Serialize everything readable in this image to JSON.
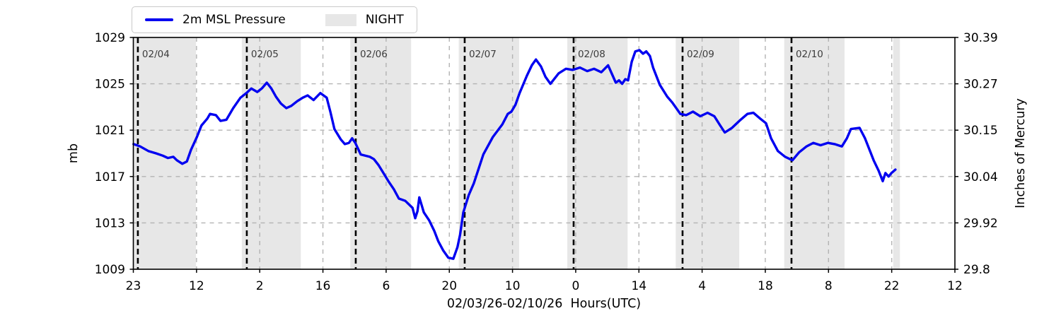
{
  "figure": {
    "background": "#ffffff"
  },
  "colors": {
    "line": "#0000f0",
    "night": "#e7e7e7",
    "grid": "#b3b3b3",
    "day_line": "#000000",
    "day_label": "#3c3c3c",
    "axis": "#000000"
  },
  "legend": {
    "items": [
      {
        "label": "2m MSL Pressure",
        "type": "line",
        "color": "#0000f0"
      },
      {
        "label": "NIGHT",
        "type": "patch",
        "color": "#e7e7e7"
      }
    ]
  },
  "chart_data": {
    "type": "line",
    "title": "",
    "xlabel": "02/03/26-02/10/26  Hours(UTC)",
    "ylabel_left": "mb",
    "ylabel_right": "Inches of Mercury",
    "grid": true,
    "legend_position": "top-left, horizontal",
    "xlim_hours": [
      0,
      181
    ],
    "ylim_mb": [
      1009,
      1029
    ],
    "x_tick_labels": [
      "23",
      "12",
      "2",
      "16",
      "6",
      "20",
      "10",
      "0",
      "14",
      "4",
      "18",
      "8",
      "22",
      "12"
    ],
    "y_ticks_left_mb": [
      1009,
      1013,
      1017,
      1021,
      1025,
      1029
    ],
    "y_tick_labels_right_inhg": [
      "29.8",
      "29.92",
      "30.04",
      "30.15",
      "30.27",
      "30.39"
    ],
    "day_markers": [
      {
        "label": "02/04",
        "hour": 1
      },
      {
        "label": "02/05",
        "hour": 25
      },
      {
        "label": "02/06",
        "hour": 49
      },
      {
        "label": "02/07",
        "hour": 73
      },
      {
        "label": "02/08",
        "hour": 97
      },
      {
        "label": "02/09",
        "hour": 121
      },
      {
        "label": "02/10",
        "hour": 145
      }
    ],
    "night_bands_hours": [
      [
        0,
        13.8
      ],
      [
        23.9,
        36.9
      ],
      [
        47.8,
        61.2
      ],
      [
        71.7,
        85.0
      ],
      [
        95.6,
        108.9
      ],
      [
        119.5,
        133.5
      ],
      [
        143.4,
        156.7
      ],
      [
        167.4,
        168.9
      ]
    ],
    "series": [
      {
        "name": "2m MSL Pressure",
        "color": "#0000f0",
        "units": "mb",
        "points_hour_mb": [
          [
            0.05,
            1019.8
          ],
          [
            1.5,
            1019.6
          ],
          [
            3.3,
            1019.2
          ],
          [
            5.0,
            1019.0
          ],
          [
            6.5,
            1018.8
          ],
          [
            7.6,
            1018.6
          ],
          [
            8.8,
            1018.7
          ],
          [
            9.6,
            1018.4
          ],
          [
            10.8,
            1018.1
          ],
          [
            11.8,
            1018.3
          ],
          [
            12.7,
            1019.3
          ],
          [
            14.0,
            1020.4
          ],
          [
            15.0,
            1021.4
          ],
          [
            16.3,
            1022.0
          ],
          [
            16.9,
            1022.4
          ],
          [
            18.2,
            1022.3
          ],
          [
            19.2,
            1021.8
          ],
          [
            20.5,
            1021.9
          ],
          [
            22.0,
            1022.9
          ],
          [
            23.6,
            1023.8
          ],
          [
            24.9,
            1024.2
          ],
          [
            26.0,
            1024.6
          ],
          [
            27.3,
            1024.3
          ],
          [
            28.3,
            1024.6
          ],
          [
            29.4,
            1025.1
          ],
          [
            30.4,
            1024.6
          ],
          [
            31.4,
            1023.9
          ],
          [
            32.5,
            1023.3
          ],
          [
            33.7,
            1022.9
          ],
          [
            34.8,
            1023.1
          ],
          [
            36.1,
            1023.5
          ],
          [
            37.3,
            1023.8
          ],
          [
            38.4,
            1024.0
          ],
          [
            39.7,
            1023.6
          ],
          [
            41.2,
            1024.2
          ],
          [
            42.6,
            1023.8
          ],
          [
            43.4,
            1022.6
          ],
          [
            44.3,
            1021.1
          ],
          [
            45.7,
            1020.2
          ],
          [
            46.6,
            1019.8
          ],
          [
            47.5,
            1019.9
          ],
          [
            48.2,
            1020.3
          ],
          [
            48.9,
            1019.9
          ],
          [
            50.1,
            1018.9
          ],
          [
            52.1,
            1018.7
          ],
          [
            53.0,
            1018.5
          ],
          [
            54.0,
            1018.0
          ],
          [
            55.1,
            1017.3
          ],
          [
            56.2,
            1016.6
          ],
          [
            57.4,
            1015.9
          ],
          [
            58.5,
            1015.1
          ],
          [
            59.9,
            1014.9
          ],
          [
            61.5,
            1014.3
          ],
          [
            62.1,
            1013.4
          ],
          [
            62.6,
            1014.0
          ],
          [
            63.0,
            1015.2
          ],
          [
            64.0,
            1013.9
          ],
          [
            65.2,
            1013.2
          ],
          [
            66.3,
            1012.3
          ],
          [
            67.2,
            1011.4
          ],
          [
            68.3,
            1010.6
          ],
          [
            69.4,
            1010.0
          ],
          [
            70.5,
            1009.9
          ],
          [
            71.4,
            1010.9
          ],
          [
            72.0,
            1012.0
          ],
          [
            72.7,
            1013.9
          ],
          [
            73.9,
            1015.4
          ],
          [
            75.0,
            1016.4
          ],
          [
            77.1,
            1018.9
          ],
          [
            79.2,
            1020.4
          ],
          [
            81.3,
            1021.5
          ],
          [
            82.5,
            1022.4
          ],
          [
            83.3,
            1022.6
          ],
          [
            84.2,
            1023.2
          ],
          [
            85.1,
            1024.2
          ],
          [
            86.7,
            1025.7
          ],
          [
            87.8,
            1026.6
          ],
          [
            88.7,
            1027.1
          ],
          [
            89.8,
            1026.5
          ],
          [
            90.8,
            1025.6
          ],
          [
            91.9,
            1025.0
          ],
          [
            93.7,
            1025.9
          ],
          [
            95.3,
            1026.3
          ],
          [
            96.8,
            1026.2
          ],
          [
            98.4,
            1026.4
          ],
          [
            100.0,
            1026.1
          ],
          [
            101.5,
            1026.3
          ],
          [
            103.1,
            1026.0
          ],
          [
            104.6,
            1026.6
          ],
          [
            105.5,
            1025.8
          ],
          [
            106.3,
            1025.1
          ],
          [
            107.0,
            1025.3
          ],
          [
            107.7,
            1025.0
          ],
          [
            108.4,
            1025.4
          ],
          [
            109.0,
            1025.3
          ],
          [
            109.8,
            1026.9
          ],
          [
            110.6,
            1027.8
          ],
          [
            111.5,
            1027.9
          ],
          [
            112.3,
            1027.6
          ],
          [
            113.0,
            1027.8
          ],
          [
            113.8,
            1027.4
          ],
          [
            114.5,
            1026.4
          ],
          [
            116.0,
            1024.9
          ],
          [
            117.6,
            1023.9
          ],
          [
            118.7,
            1023.4
          ],
          [
            119.8,
            1022.8
          ],
          [
            120.5,
            1022.4
          ],
          [
            121.8,
            1022.3
          ],
          [
            123.3,
            1022.6
          ],
          [
            124.9,
            1022.2
          ],
          [
            126.5,
            1022.5
          ],
          [
            128.0,
            1022.2
          ],
          [
            129.3,
            1021.4
          ],
          [
            130.3,
            1020.8
          ],
          [
            131.9,
            1021.2
          ],
          [
            133.8,
            1021.9
          ],
          [
            135.3,
            1022.4
          ],
          [
            136.6,
            1022.5
          ],
          [
            138.1,
            1022.0
          ],
          [
            139.4,
            1021.6
          ],
          [
            140.5,
            1020.3
          ],
          [
            142.0,
            1019.2
          ],
          [
            143.6,
            1018.7
          ],
          [
            145.2,
            1018.4
          ],
          [
            146.7,
            1019.1
          ],
          [
            148.3,
            1019.6
          ],
          [
            149.8,
            1019.9
          ],
          [
            151.4,
            1019.7
          ],
          [
            153.0,
            1019.9
          ],
          [
            154.5,
            1019.8
          ],
          [
            156.1,
            1019.6
          ],
          [
            157.2,
            1020.3
          ],
          [
            158.1,
            1021.1
          ],
          [
            160.0,
            1021.2
          ],
          [
            161.2,
            1020.3
          ],
          [
            162.3,
            1019.2
          ],
          [
            163.1,
            1018.4
          ],
          [
            164.2,
            1017.5
          ],
          [
            165.1,
            1016.6
          ],
          [
            165.7,
            1017.3
          ],
          [
            166.4,
            1017.0
          ],
          [
            167.0,
            1017.3
          ],
          [
            167.9,
            1017.6
          ]
        ]
      }
    ]
  }
}
